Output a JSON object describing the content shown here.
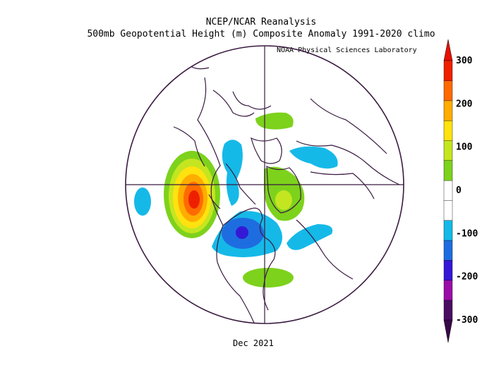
{
  "title": {
    "line1": "NCEP/NCAR Reanalysis",
    "line2": "500mb Geopotential Height (m) Composite Anomaly 1991-2020 climo"
  },
  "credit": "NOAA Physical Sciences Laboratory",
  "date_label": "Dec 2021",
  "colorbar": {
    "ticks": [
      "300",
      "200",
      "100",
      "0",
      "-100",
      "-200",
      "-300"
    ],
    "colors": [
      "#4b0d60",
      "#9a0ca8",
      "#3418d6",
      "#1e6de0",
      "#15b9e8",
      "#ffffff",
      "#ffffff",
      "#7dd21c",
      "#c4e620",
      "#ffe210",
      "#ffad00",
      "#ff6a00",
      "#ee2000"
    ],
    "lower_arrow_color": "#3a0848",
    "upper_arrow_color": "#e81000"
  },
  "map": {
    "projection": "polar stereographic",
    "anomaly_features": [
      {
        "region": "Gulf of Alaska",
        "sign": "positive",
        "peak_m": 300
      },
      {
        "region": "Western Canada",
        "sign": "negative",
        "peak_m": -100
      },
      {
        "region": "North Pacific",
        "sign": "negative",
        "peak_m": -100
      },
      {
        "region": "Hudson Bay / Central Canada",
        "sign": "negative",
        "peak_m": -250
      },
      {
        "region": "North Atlantic",
        "sign": "negative",
        "peak_m": -100
      },
      {
        "region": "Eastern United States",
        "sign": "positive",
        "peak_m": 100
      },
      {
        "region": "Greenland / North Atlantic",
        "sign": "positive",
        "peak_m": 150
      },
      {
        "region": "Scandinavia",
        "sign": "negative",
        "peak_m": -100
      },
      {
        "region": "Northern Siberia",
        "sign": "positive",
        "peak_m": 100
      }
    ]
  }
}
